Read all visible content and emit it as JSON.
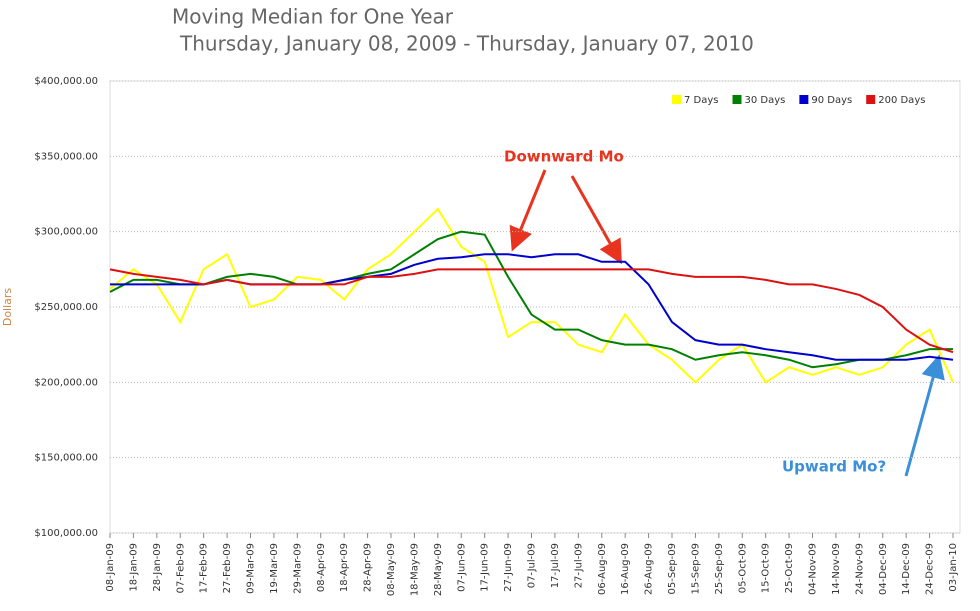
{
  "chart_data": {
    "type": "line",
    "title": "Moving Median for One Year",
    "subtitle": "Thursday, January 08, 2009 - Thursday, January 07, 2010",
    "y_label": "Dollars",
    "categories": [
      "08-Jan-09",
      "18-Jan-09",
      "28-Jan-09",
      "07-Feb-09",
      "17-Feb-09",
      "27-Feb-09",
      "09-Mar-09",
      "19-Mar-09",
      "29-Mar-09",
      "08-Apr-09",
      "18-Apr-09",
      "28-Apr-09",
      "08-May-09",
      "18-May-09",
      "28-May-09",
      "07-Jun-09",
      "17-Jun-09",
      "27-Jun-09",
      "07-Jul-09",
      "17-Jul-09",
      "27-Jul-09",
      "06-Aug-09",
      "16-Aug-09",
      "26-Aug-09",
      "05-Sep-09",
      "15-Sep-09",
      "25-Sep-09",
      "05-Oct-09",
      "15-Oct-09",
      "25-Oct-09",
      "04-Nov-09",
      "14-Nov-09",
      "24-Nov-09",
      "04-Dec-09",
      "14-Dec-09",
      "24-Dec-09",
      "03-Jan-10"
    ],
    "series": [
      {
        "name": "7 Days",
        "color": "#ffff00",
        "values": [
          262000,
          275000,
          265000,
          240000,
          275000,
          285000,
          250000,
          255000,
          270000,
          268000,
          255000,
          275000,
          285000,
          300000,
          315000,
          290000,
          280000,
          230000,
          240000,
          240000,
          225000,
          220000,
          245000,
          225000,
          215000,
          200000,
          215000,
          225000,
          200000,
          210000,
          205000,
          210000,
          205000,
          210000,
          225000,
          235000,
          200000
        ]
      },
      {
        "name": "30 Days",
        "color": "#008000",
        "values": [
          260000,
          268000,
          268000,
          265000,
          265000,
          270000,
          272000,
          270000,
          265000,
          265000,
          268000,
          272000,
          275000,
          285000,
          295000,
          300000,
          298000,
          270000,
          245000,
          235000,
          235000,
          228000,
          225000,
          225000,
          222000,
          215000,
          218000,
          220000,
          218000,
          215000,
          210000,
          212000,
          215000,
          215000,
          218000,
          222000,
          222000
        ]
      },
      {
        "name": "90 Days",
        "color": "#0000cc",
        "values": [
          265000,
          265000,
          265000,
          265000,
          265000,
          268000,
          265000,
          265000,
          265000,
          265000,
          268000,
          270000,
          272000,
          278000,
          282000,
          283000,
          285000,
          285000,
          283000,
          285000,
          285000,
          280000,
          280000,
          265000,
          240000,
          228000,
          225000,
          225000,
          222000,
          220000,
          218000,
          215000,
          215000,
          215000,
          215000,
          217000,
          215000
        ]
      },
      {
        "name": "200 Days",
        "color": "#dd1111",
        "values": [
          275000,
          272000,
          270000,
          268000,
          265000,
          268000,
          265000,
          265000,
          265000,
          265000,
          265000,
          270000,
          270000,
          272000,
          275000,
          275000,
          275000,
          275000,
          275000,
          275000,
          275000,
          275000,
          275000,
          275000,
          272000,
          270000,
          270000,
          270000,
          268000,
          265000,
          265000,
          262000,
          258000,
          250000,
          235000,
          225000,
          220000
        ]
      }
    ],
    "ylim": [
      100000,
      400000
    ],
    "yticks": [
      {
        "value": 100000,
        "label": "$100,000.00"
      },
      {
        "value": 150000,
        "label": "$150,000.00"
      },
      {
        "value": 200000,
        "label": "$200,000.00"
      },
      {
        "value": 250000,
        "label": "$250,000.00"
      },
      {
        "value": 300000,
        "label": "$300,000.00"
      },
      {
        "value": 350000,
        "label": "$350,000.00"
      },
      {
        "value": 400000,
        "label": "$400,000.00"
      }
    ],
    "grid": true,
    "legend": "top-right",
    "annotations": [
      {
        "text": "Downward Mo",
        "color": "#e8341f"
      },
      {
        "text": "Upward Mo?",
        "color": "#3a8fd8"
      }
    ]
  }
}
